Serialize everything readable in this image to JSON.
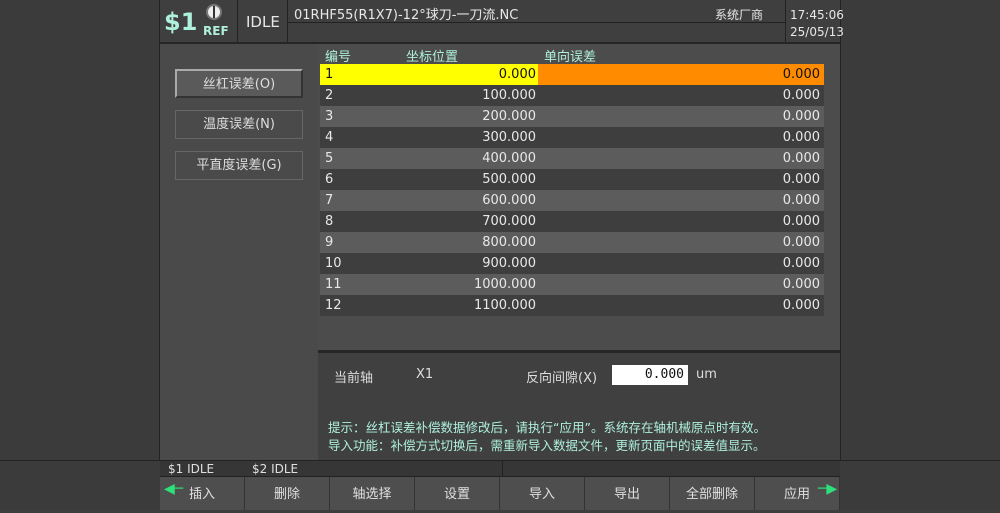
{
  "header": {
    "channel": "$1",
    "ref": "REF",
    "state": "IDLE",
    "program": "01RHF55(R1X7)-12°球刀-一刀流.NC",
    "vendor": "系统厂商",
    "time": "17:45:06",
    "date": "25/05/13"
  },
  "side_buttons": [
    {
      "label": "丝杠误差(O)",
      "active": true
    },
    {
      "label": "温度误差(N)",
      "active": false
    },
    {
      "label": "平直度误差(G)",
      "active": false
    }
  ],
  "table": {
    "columns": [
      "编号",
      "坐标位置",
      "单向误差"
    ],
    "rows": [
      [
        "1",
        "0.000",
        "0.000"
      ],
      [
        "2",
        "100.000",
        "0.000"
      ],
      [
        "3",
        "200.000",
        "0.000"
      ],
      [
        "4",
        "300.000",
        "0.000"
      ],
      [
        "5",
        "400.000",
        "0.000"
      ],
      [
        "6",
        "500.000",
        "0.000"
      ],
      [
        "7",
        "600.000",
        "0.000"
      ],
      [
        "8",
        "700.000",
        "0.000"
      ],
      [
        "9",
        "800.000",
        "0.000"
      ],
      [
        "10",
        "900.000",
        "0.000"
      ],
      [
        "11",
        "1000.000",
        "0.000"
      ],
      [
        "12",
        "1100.000",
        "0.000"
      ]
    ],
    "selected_row": 0,
    "colors": {
      "selected_pos": "#ffff00",
      "selected_err": "#ff8c00",
      "row_light": "#5c5c5c",
      "row_dark": "#3e3e3e"
    }
  },
  "info": {
    "axis_label": "当前轴",
    "axis_value": "X1",
    "backlash_label": "反向间隙(X)",
    "backlash_value": "0.000",
    "backlash_unit": "um",
    "tip1": "提示：丝杠误差补偿数据修改后，请执行“应用”。系统存在轴机械原点时有效。",
    "tip2": "导入功能：补偿方式切换后，需重新导入数据文件，更新页面中的误差值显示。"
  },
  "status": {
    "ch1": "$1 IDLE",
    "ch2": "$2 IDLE"
  },
  "softkeys": [
    "插入",
    "删除",
    "轴选择",
    "设置",
    "导入",
    "导出",
    "全部删除",
    "应用"
  ],
  "icons": {
    "prev": "arrow-left-icon",
    "next": "arrow-right-icon",
    "ref": "reference-icon"
  }
}
